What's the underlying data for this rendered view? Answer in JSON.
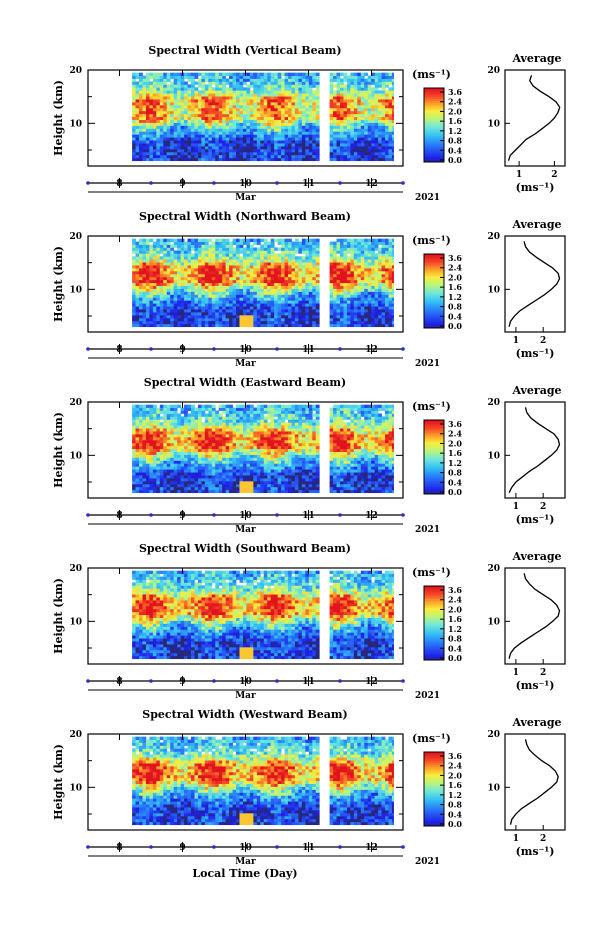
{
  "x_label": "Local Time (Day)",
  "month": "Mar",
  "year": "2021",
  "day_ticks": [
    "8",
    "9",
    "10",
    "11",
    "12"
  ],
  "height_label": "Height (km)",
  "height_ticks": [
    "20",
    "10"
  ],
  "unit": "(ms⁻¹)",
  "colorbar_ticks": [
    "3.6",
    "2.4",
    "2.0",
    "1.6",
    "1.2",
    "0.8",
    "0.4",
    "0.0"
  ],
  "average_title": "Average",
  "panels": [
    {
      "title": "Spectral Width (Vertical Beam)",
      "avg_ticks": [
        "1",
        "2"
      ]
    },
    {
      "title": "Spectral Width (Northward Beam)",
      "avg_ticks": [
        "1",
        "2"
      ]
    },
    {
      "title": "Spectral Width (Eastward Beam)",
      "avg_ticks": [
        "1",
        "2"
      ]
    },
    {
      "title": "Spectral Width (Southward Beam)",
      "avg_ticks": [
        "1",
        "2"
      ]
    },
    {
      "title": "Spectral Width (Westward Beam)",
      "avg_ticks": [
        "1",
        "2"
      ]
    }
  ],
  "chart_data": [
    {
      "type": "heatmap",
      "title": "Spectral Width (Vertical Beam)",
      "xlabel": "Local Time (Day)",
      "ylabel": "Height (km)",
      "ylim": [
        2,
        20
      ],
      "xlim": [
        7.5,
        12.5
      ],
      "data_x_range": [
        8.2,
        12.35
      ],
      "gap": [
        11.15,
        11.3
      ],
      "colorbar_range": [
        0.0,
        3.6
      ],
      "colormap": "jet",
      "avg_profile": {
        "type": "line",
        "title": "Average",
        "xlabel": "(ms⁻¹)",
        "xlim": [
          0.6,
          2.3
        ],
        "height_km": [
          3,
          4,
          5,
          6,
          7,
          8,
          9,
          10,
          11,
          12,
          13,
          14,
          15,
          16,
          17,
          18,
          19
        ],
        "width": [
          0.7,
          0.75,
          0.9,
          1.05,
          1.2,
          1.45,
          1.65,
          1.85,
          2.0,
          2.1,
          2.15,
          2.05,
          1.85,
          1.6,
          1.4,
          1.3,
          1.35
        ]
      }
    },
    {
      "type": "heatmap",
      "title": "Spectral Width (Northward Beam)",
      "xlabel": "Local Time (Day)",
      "ylabel": "Height (km)",
      "ylim": [
        2,
        20
      ],
      "xlim": [
        7.5,
        12.5
      ],
      "data_x_range": [
        8.2,
        12.35
      ],
      "gap": [
        11.15,
        11.3
      ],
      "colorbar_range": [
        0.0,
        3.6
      ],
      "colormap": "jet",
      "avg_profile": {
        "type": "line",
        "title": "Average",
        "xlabel": "(ms⁻¹)",
        "xlim": [
          0.6,
          2.8
        ],
        "height_km": [
          3,
          4,
          5,
          6,
          7,
          8,
          9,
          10,
          11,
          12,
          13,
          14,
          15,
          16,
          17,
          18,
          19
        ],
        "width": [
          0.75,
          0.8,
          0.95,
          1.15,
          1.45,
          1.75,
          2.05,
          2.3,
          2.5,
          2.6,
          2.55,
          2.35,
          2.05,
          1.75,
          1.5,
          1.35,
          1.3
        ]
      }
    },
    {
      "type": "heatmap",
      "title": "Spectral Width (Eastward Beam)",
      "xlabel": "Local Time (Day)",
      "ylabel": "Height (km)",
      "ylim": [
        2,
        20
      ],
      "xlim": [
        7.5,
        12.5
      ],
      "data_x_range": [
        8.2,
        12.35
      ],
      "gap": [
        11.15,
        11.3
      ],
      "colorbar_range": [
        0.0,
        3.6
      ],
      "colormap": "jet",
      "avg_profile": {
        "type": "line",
        "title": "Average",
        "xlabel": "(ms⁻¹)",
        "xlim": [
          0.6,
          2.8
        ],
        "height_km": [
          3,
          4,
          5,
          6,
          7,
          8,
          9,
          10,
          11,
          12,
          13,
          14,
          15,
          16,
          17,
          18,
          19
        ],
        "width": [
          0.75,
          0.85,
          1.0,
          1.25,
          1.5,
          1.8,
          2.05,
          2.3,
          2.5,
          2.6,
          2.55,
          2.4,
          2.1,
          1.8,
          1.55,
          1.4,
          1.35
        ]
      }
    },
    {
      "type": "heatmap",
      "title": "Spectral Width (Southward Beam)",
      "xlabel": "Local Time (Day)",
      "ylabel": "Height (km)",
      "ylim": [
        2,
        20
      ],
      "xlim": [
        7.5,
        12.5
      ],
      "data_x_range": [
        8.2,
        12.35
      ],
      "gap": [
        11.15,
        11.3
      ],
      "colorbar_range": [
        0.0,
        3.6
      ],
      "colormap": "jet",
      "avg_profile": {
        "type": "line",
        "title": "Average",
        "xlabel": "(ms⁻¹)",
        "xlim": [
          0.6,
          2.8
        ],
        "height_km": [
          3,
          4,
          5,
          6,
          7,
          8,
          9,
          10,
          11,
          12,
          13,
          14,
          15,
          16,
          17,
          18,
          19
        ],
        "width": [
          0.75,
          0.8,
          0.95,
          1.2,
          1.5,
          1.8,
          2.1,
          2.35,
          2.55,
          2.6,
          2.5,
          2.3,
          2.0,
          1.7,
          1.5,
          1.35,
          1.3
        ]
      }
    },
    {
      "type": "heatmap",
      "title": "Spectral Width (Westward Beam)",
      "xlabel": "Local Time (Day)",
      "ylabel": "Height (km)",
      "ylim": [
        2,
        20
      ],
      "xlim": [
        7.5,
        12.5
      ],
      "data_x_range": [
        8.2,
        12.35
      ],
      "gap": [
        11.15,
        11.3
      ],
      "colorbar_range": [
        0.0,
        3.6
      ],
      "colormap": "jet",
      "avg_profile": {
        "type": "line",
        "title": "Average",
        "xlabel": "(ms⁻¹)",
        "xlim": [
          0.6,
          2.8
        ],
        "height_km": [
          3,
          4,
          5,
          6,
          7,
          8,
          9,
          10,
          11,
          12,
          13,
          14,
          15,
          16,
          17,
          18,
          19
        ],
        "width": [
          0.8,
          0.85,
          1.0,
          1.2,
          1.5,
          1.8,
          2.05,
          2.3,
          2.5,
          2.55,
          2.45,
          2.25,
          1.95,
          1.7,
          1.5,
          1.4,
          1.35
        ]
      }
    }
  ]
}
